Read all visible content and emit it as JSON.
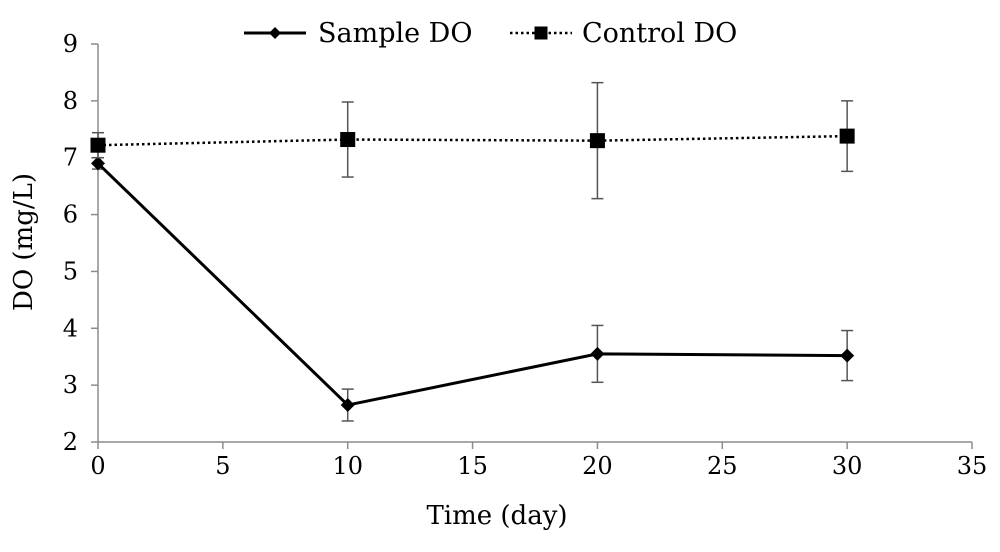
{
  "chart_data": {
    "type": "line",
    "title": "",
    "xlabel": "Time (day)",
    "ylabel": "DO (mg/L)",
    "xlim": [
      0,
      35
    ],
    "ylim": [
      2,
      9
    ],
    "xticks": [
      0,
      5,
      10,
      15,
      20,
      25,
      30,
      35
    ],
    "yticks": [
      2,
      3,
      4,
      5,
      6,
      7,
      8,
      9
    ],
    "grid": false,
    "legend": {
      "placement": "top",
      "entries": [
        "Sample DO",
        "Control DO"
      ]
    },
    "series": [
      {
        "name": "Sample DO",
        "line_style": "solid",
        "marker": "diamond",
        "color": "#000000",
        "x": [
          0,
          10,
          20,
          30
        ],
        "values": [
          6.9,
          2.65,
          3.55,
          3.52
        ],
        "error": [
          0.1,
          0.28,
          0.5,
          0.44
        ]
      },
      {
        "name": "Control DO",
        "line_style": "dotted",
        "marker": "square",
        "color": "#000000",
        "x": [
          0,
          10,
          20,
          30
        ],
        "values": [
          7.22,
          7.32,
          7.3,
          7.38
        ],
        "error": [
          0.22,
          0.66,
          1.02,
          0.62
        ]
      }
    ]
  }
}
